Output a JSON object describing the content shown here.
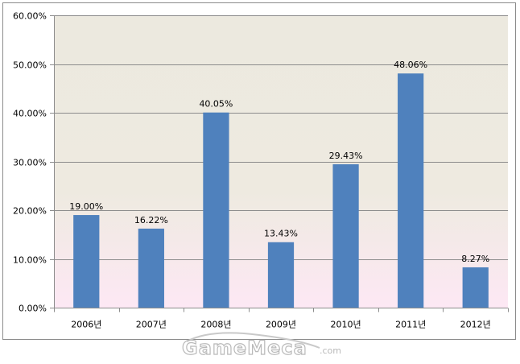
{
  "chart_data": {
    "type": "bar",
    "categories": [
      "2006년",
      "2007년",
      "2008년",
      "2009년",
      "2010년",
      "2011년",
      "2012년"
    ],
    "values": [
      19.0,
      16.22,
      40.05,
      13.43,
      29.43,
      48.06,
      8.27
    ],
    "data_labels": [
      "19.00%",
      "16.22%",
      "40.05%",
      "13.43%",
      "29.43%",
      "48.06%",
      "8.27%"
    ],
    "y_ticks": [
      0,
      10,
      20,
      30,
      40,
      50,
      60
    ],
    "y_tick_labels": [
      "0.00%",
      "10.00%",
      "20.00%",
      "30.00%",
      "40.00%",
      "50.00%",
      "60.00%"
    ],
    "ylim": [
      0,
      60
    ],
    "title": "",
    "xlabel": "",
    "ylabel": "",
    "grid": true,
    "legend": "none",
    "colors": {
      "bar": "#4f81bd",
      "plot_top": "#ece9df",
      "plot_bottom": "#fde8f4",
      "gridline": "#8c8c8c"
    }
  },
  "watermark": {
    "text": "GameMeca",
    "suffix": ".com",
    "color": "#b9b9b9"
  }
}
